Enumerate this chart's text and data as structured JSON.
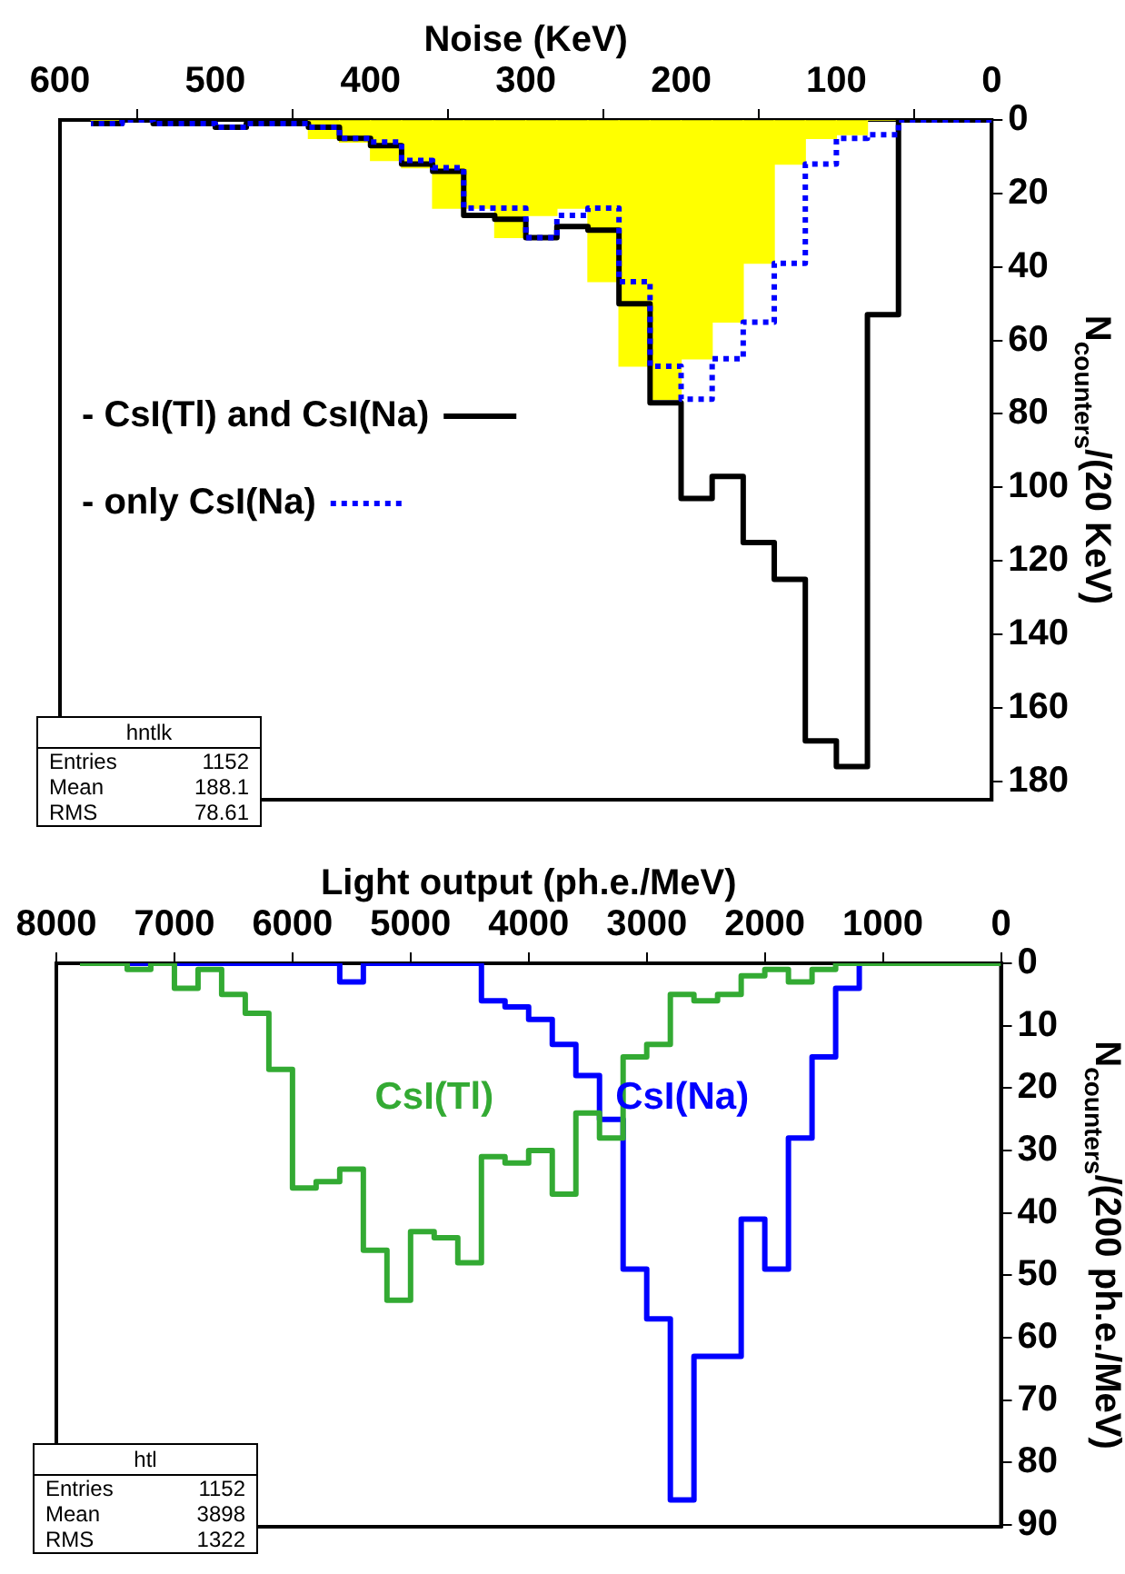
{
  "chart_data": [
    {
      "type": "histogram",
      "xlabel": "Noise (KeV)",
      "ylabel": "N$_{counters}$/(20 KeV)",
      "bins": [
        0,
        20,
        40,
        60,
        80,
        100,
        120,
        140,
        160,
        180,
        200,
        220,
        240,
        260,
        280,
        300,
        320,
        340,
        360,
        380,
        400,
        420,
        440,
        460,
        480,
        500,
        520,
        540,
        560,
        580,
        600
      ],
      "series": [
        {
          "type": "histogram",
          "color": "#ffff00",
          "values": [
            0,
            0,
            0,
            0,
            4,
            5,
            12,
            39,
            55,
            65,
            76,
            67,
            44,
            24,
            26,
            32,
            24,
            24,
            13,
            11,
            6,
            5,
            null,
            null,
            null,
            null,
            null,
            null,
            0,
            null
          ]
        },
        {
          "name": "- CsI(Tl) and CsI(Na)",
          "type": "step",
          "color": "#000000",
          "line_style": "solid",
          "x": [
            0,
            20,
            40,
            60,
            80,
            100,
            120,
            140,
            160,
            180,
            200,
            220,
            240,
            260,
            280,
            300,
            320,
            340,
            360,
            380,
            400,
            420,
            440,
            460,
            480,
            500,
            520,
            540,
            560,
            580
          ],
          "values": [
            0,
            0,
            0,
            0,
            53,
            176,
            169,
            125,
            115,
            97,
            103,
            77,
            50,
            30,
            29,
            32,
            27,
            26,
            14,
            12,
            7,
            5,
            2,
            1,
            1,
            2,
            1,
            1,
            0,
            1
          ]
        },
        {
          "name": "- only CsI(Na)",
          "type": "step",
          "color": "#0000ff",
          "line_style": "dotted",
          "x": [
            0,
            20,
            40,
            60,
            80,
            100,
            120,
            140,
            160,
            180,
            200,
            220,
            240,
            260,
            280,
            300,
            320,
            340,
            360,
            380,
            400,
            420,
            440,
            460,
            480,
            500,
            520,
            540,
            560,
            580
          ],
          "values": [
            0,
            0,
            0,
            0,
            4,
            5,
            12,
            39,
            55,
            65,
            76,
            67,
            44,
            24,
            26,
            32,
            24,
            24,
            13,
            11,
            6,
            5,
            2,
            1,
            1,
            2,
            1,
            1,
            0,
            1
          ]
        }
      ],
      "xlim": [
        600,
        0
      ],
      "xticks": [
        0,
        100,
        200,
        300,
        400,
        500,
        600
      ],
      "ylim": [
        185,
        0
      ],
      "yticks": [
        0,
        20,
        40,
        60,
        80,
        100,
        120,
        140,
        160,
        180
      ],
      "grid": false,
      "legend": "left",
      "marker": "none",
      "annotations": [
        "hntlk",
        "Entries 1152",
        "Mean 188.1",
        "RMS 78.61"
      ]
    },
    {
      "type": "step",
      "xlabel": "Light output (ph.e./MeV)",
      "ylabel": "N$_{counters}$/(200 ph.e./MeV)",
      "x": [
        0,
        200,
        400,
        600,
        800,
        1000,
        1200,
        1400,
        1600,
        1800,
        2000,
        2200,
        2400,
        2600,
        2800,
        3000,
        3200,
        3400,
        3600,
        3800,
        4000,
        4200,
        4400,
        4600,
        4800,
        5000,
        5200,
        5400,
        5600,
        5800,
        6000,
        6200,
        6400,
        6600,
        6800,
        7000,
        7200,
        7400,
        7600,
        7800
      ],
      "series": [
        {
          "name": "CsI(Na)",
          "color": "#0000ff",
          "line_style": "solid",
          "values": [
            null,
            null,
            null,
            null,
            null,
            0,
            0,
            4,
            15,
            28,
            49,
            41,
            63,
            63,
            86,
            57,
            49,
            25,
            18,
            13,
            9,
            7,
            6,
            0,
            0,
            0,
            0,
            0,
            3,
            0,
            0,
            0,
            0,
            0,
            0,
            0,
            0,
            0,
            0,
            0
          ]
        },
        {
          "name": "CsI(Tl)",
          "color": "#33aa33",
          "line_style": "solid",
          "values": [
            0,
            0,
            0,
            0,
            0,
            0,
            0,
            0,
            1,
            3,
            1,
            2,
            5,
            6,
            5,
            13,
            15,
            28,
            24,
            37,
            30,
            32,
            31,
            48,
            44,
            43,
            54,
            46,
            33,
            35,
            36,
            17,
            8,
            5,
            1,
            4,
            0,
            1,
            0,
            0
          ]
        }
      ],
      "xlim": [
        8000,
        0
      ],
      "xticks": [
        0,
        1000,
        2000,
        3000,
        4000,
        5000,
        6000,
        7000,
        8000
      ],
      "ylim": [
        90.3,
        0
      ],
      "yticks": [
        0,
        10,
        20,
        30,
        40,
        50,
        60,
        70,
        80,
        90
      ],
      "grid": false,
      "legend": false,
      "marker": "none",
      "annotations": [
        "htl",
        "Entries 1152",
        "Mean 3898",
        "RMS 1322"
      ]
    }
  ]
}
